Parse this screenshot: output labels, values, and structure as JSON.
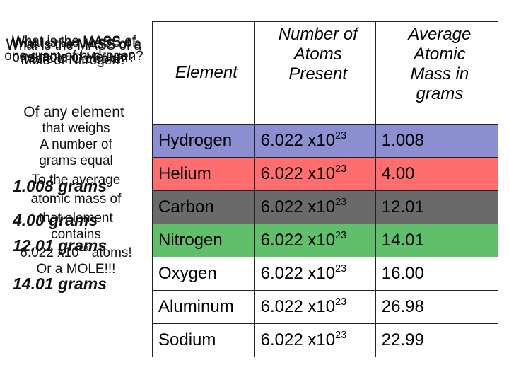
{
  "left_panel": {
    "overprint_questions": [
      "What is the MASS of one gram of hydrogen?",
      "What is the MASS of one mole of Helium?",
      "What is the MASS of a Mole of Carbon?",
      "What is the MASS of a Mole of Nitrogen?"
    ],
    "overprint_heading": "Of any element",
    "statement_lines": [
      "that weighs",
      "A number of",
      "grams equal",
      "To the average",
      "atomic mass of",
      "that element",
      "contains"
    ],
    "avogadro_base": "6.022 x10",
    "avogadro_exp": "23",
    "avogadro_tail": " atoms!",
    "closing": "Or a MOLE!!!",
    "gram_answers": [
      "1.008 grams",
      "4.00 grams",
      "12.01 grams",
      "14.01 grams"
    ]
  },
  "table": {
    "headers": {
      "element": "Element",
      "atoms": [
        "Number of",
        "Atoms",
        "Present"
      ],
      "mass": [
        "Average",
        "Atomic",
        "Mass in",
        "grams"
      ]
    },
    "rows": [
      {
        "element": "Hydrogen",
        "atoms_base": "6.022 x10",
        "atoms_exp": "23",
        "mass": "1.008",
        "color": "#8b8ed0"
      },
      {
        "element": "Helium",
        "atoms_base": "6.022 x10",
        "atoms_exp": "23",
        "mass": "4.00",
        "color": "#ff6e6e"
      },
      {
        "element": "Carbon",
        "atoms_base": "6.022 x10",
        "atoms_exp": "23",
        "mass": "12.01",
        "color": "#6a6a6a"
      },
      {
        "element": "Nitrogen",
        "atoms_base": "6.022 x10",
        "atoms_exp": "23",
        "mass": "14.01",
        "color": "#5fbf6a"
      },
      {
        "element": "Oxygen",
        "atoms_base": "6.022 x10",
        "atoms_exp": "23",
        "mass": "16.00",
        "color": "#ffffff"
      },
      {
        "element": "Aluminum",
        "atoms_base": "6.022 x10",
        "atoms_exp": "23",
        "mass": "26.98",
        "color": "#ffffff"
      },
      {
        "element": "Sodium",
        "atoms_base": "6.022 x10",
        "atoms_exp": "23",
        "mass": "22.99",
        "color": "#ffffff"
      }
    ]
  }
}
